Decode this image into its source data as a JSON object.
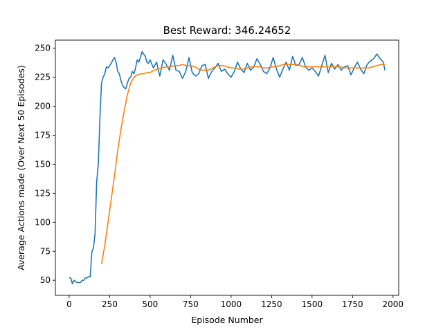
{
  "chart_data": {
    "type": "line",
    "title": "Best Reward:  346.24652",
    "xlabel": "Episode Number",
    "ylabel": "Average Actions made (Over Next 50 Episodes)",
    "xlim": [
      -85,
      2035
    ],
    "ylim": [
      37,
      257
    ],
    "xticks": [
      0,
      250,
      500,
      750,
      1000,
      1250,
      1500,
      1750,
      2000
    ],
    "yticks": [
      50,
      75,
      100,
      125,
      150,
      175,
      200,
      225,
      250
    ],
    "grid": false,
    "legend": "none",
    "series": [
      {
        "color": "#1f77b4",
        "x": [
          0,
          10,
          20,
          30,
          40,
          50,
          60,
          70,
          80,
          90,
          100,
          110,
          120,
          130,
          140,
          150,
          160,
          170,
          180,
          190,
          200,
          210,
          220,
          230,
          240,
          250,
          260,
          270,
          280,
          290,
          300,
          310,
          320,
          330,
          340,
          350,
          360,
          370,
          380,
          390,
          400,
          410,
          420,
          430,
          440,
          450,
          460,
          470,
          480,
          490,
          500,
          520,
          540,
          560,
          580,
          600,
          620,
          640,
          660,
          680,
          700,
          720,
          740,
          760,
          780,
          800,
          820,
          840,
          860,
          880,
          900,
          920,
          940,
          960,
          980,
          1000,
          1020,
          1040,
          1060,
          1080,
          1100,
          1120,
          1140,
          1160,
          1180,
          1200,
          1220,
          1240,
          1260,
          1280,
          1300,
          1320,
          1340,
          1360,
          1380,
          1400,
          1420,
          1440,
          1460,
          1480,
          1500,
          1520,
          1540,
          1560,
          1580,
          1600,
          1620,
          1640,
          1660,
          1680,
          1700,
          1720,
          1740,
          1760,
          1780,
          1800,
          1820,
          1840,
          1860,
          1880,
          1900,
          1920,
          1940,
          1950
        ],
        "y": [
          52,
          52,
          47,
          50,
          49,
          48,
          48,
          48,
          50,
          50,
          52,
          52,
          53,
          53,
          74,
          78,
          90,
          135,
          150,
          190,
          220,
          225,
          228,
          234,
          233,
          235,
          237,
          240,
          242,
          238,
          230,
          228,
          222,
          218,
          216,
          215,
          220,
          224,
          225,
          230,
          228,
          233,
          240,
          238,
          242,
          247,
          245,
          243,
          238,
          237,
          240,
          233,
          238,
          226,
          240,
          236,
          231,
          244,
          231,
          230,
          224,
          230,
          242,
          229,
          226,
          228,
          235,
          236,
          224,
          230,
          233,
          237,
          230,
          232,
          228,
          225,
          230,
          238,
          232,
          229,
          237,
          231,
          234,
          241,
          236,
          230,
          228,
          233,
          242,
          232,
          225,
          232,
          238,
          231,
          243,
          235,
          236,
          242,
          234,
          231,
          233,
          230,
          226,
          235,
          244,
          229,
          237,
          232,
          236,
          231,
          234,
          235,
          227,
          233,
          238,
          232,
          228,
          236,
          239,
          241,
          245,
          241,
          238,
          231
        ]
      },
      {
        "color": "#ff7f0e",
        "x": [
          200,
          220,
          240,
          260,
          280,
          300,
          320,
          340,
          360,
          380,
          400,
          420,
          440,
          460,
          480,
          500,
          525,
          550,
          575,
          600,
          625,
          650,
          675,
          700,
          725,
          750,
          775,
          800,
          825,
          850,
          875,
          900,
          925,
          950,
          975,
          1000,
          1025,
          1050,
          1075,
          1100,
          1125,
          1150,
          1175,
          1200,
          1225,
          1250,
          1275,
          1300,
          1325,
          1350,
          1375,
          1400,
          1425,
          1450,
          1475,
          1500,
          1525,
          1550,
          1575,
          1600,
          1625,
          1650,
          1675,
          1700,
          1725,
          1750,
          1775,
          1800,
          1825,
          1850,
          1875,
          1900,
          1925,
          1950
        ],
        "y": [
          64,
          80,
          100,
          120,
          140,
          162,
          180,
          196,
          210,
          220,
          225,
          227,
          228,
          228,
          229,
          229,
          231,
          232,
          233,
          234,
          234,
          235,
          235,
          236,
          235,
          235,
          234,
          232,
          231,
          231,
          232,
          234,
          235,
          235,
          234,
          233,
          233,
          232,
          232,
          233,
          234,
          234,
          234,
          233,
          233,
          234,
          234,
          235,
          236,
          236,
          236,
          236,
          235,
          234,
          234,
          234,
          234,
          234,
          234,
          234,
          234,
          234,
          234,
          233,
          233,
          233,
          233,
          233,
          233,
          233,
          234,
          235,
          236,
          236
        ]
      }
    ]
  }
}
